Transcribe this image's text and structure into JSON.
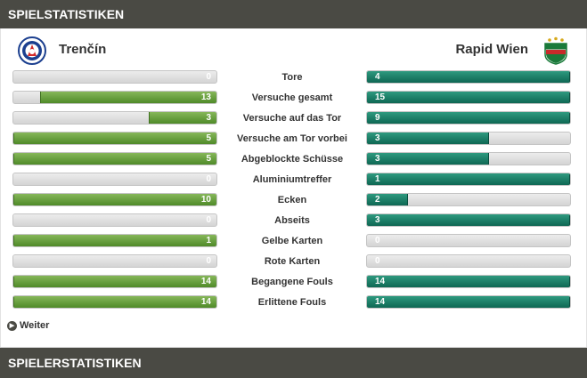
{
  "header": {
    "title": "SPIELSTATISTIKEN"
  },
  "teams": {
    "home": {
      "name": "Trenčín",
      "logo_icon": "as-trencin-crest-icon"
    },
    "away": {
      "name": "Rapid Wien",
      "logo_icon": "rapid-wien-crest-icon"
    }
  },
  "colors": {
    "home_bar": "#5d9a33",
    "away_bar": "#137a62",
    "header_bg": "#4a4a44"
  },
  "stats": [
    {
      "label": "Tore",
      "home": 0,
      "away": 4
    },
    {
      "label": "Versuche gesamt",
      "home": 13,
      "away": 15
    },
    {
      "label": "Versuche auf das Tor",
      "home": 3,
      "away": 9
    },
    {
      "label": "Versuche am Tor vorbei",
      "home": 5,
      "away": 3
    },
    {
      "label": "Abgeblockte Schüsse",
      "home": 5,
      "away": 3
    },
    {
      "label": "Aluminiumtreffer",
      "home": 0,
      "away": 1
    },
    {
      "label": "Ecken",
      "home": 10,
      "away": 2
    },
    {
      "label": "Abseits",
      "home": 0,
      "away": 3
    },
    {
      "label": "Gelbe Karten",
      "home": 1,
      "away": 0
    },
    {
      "label": "Rote Karten",
      "home": 0,
      "away": 0
    },
    {
      "label": "Begangene Fouls",
      "home": 14,
      "away": 14
    },
    {
      "label": "Erlittene Fouls",
      "home": 14,
      "away": 14
    }
  ],
  "more_link": {
    "label": "Weiter",
    "icon": "arrow-right-circle-icon"
  },
  "footer": {
    "title": "SPIELERSTATISTIKEN"
  }
}
